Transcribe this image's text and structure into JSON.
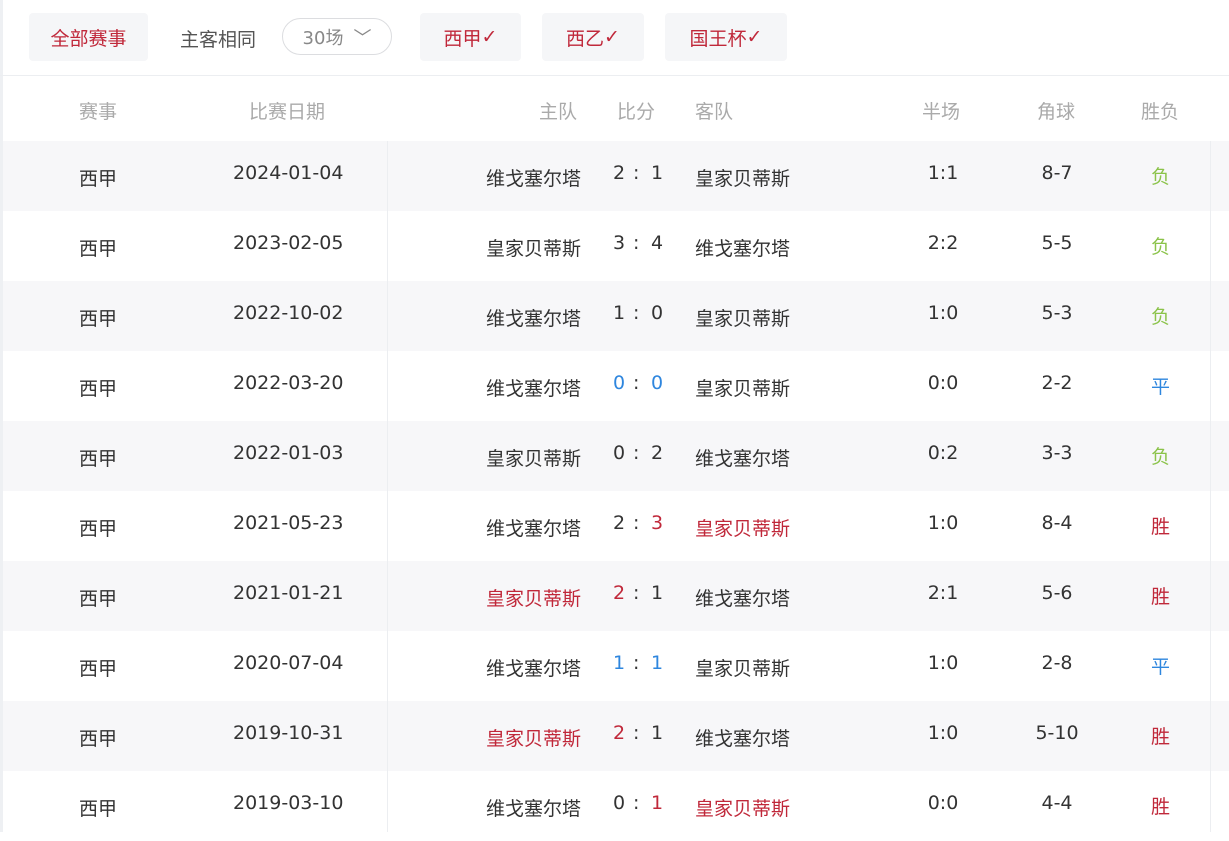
{
  "filters": {
    "all": "全部赛事",
    "same_label": "主客相同",
    "count": "30场",
    "leagues": [
      "西甲",
      "西乙",
      "国王杯"
    ],
    "check": "✓"
  },
  "headers": {
    "league": "赛事",
    "date": "比赛日期",
    "home": "主队",
    "score": "比分",
    "away": "客队",
    "half": "半场",
    "corner": "角球",
    "result": "胜负"
  },
  "colors": {
    "win": "#c0283a",
    "draw": "#2e86de",
    "loss": "#8bc34a"
  },
  "rows": [
    {
      "league": "西甲",
      "date": "2024-01-04",
      "home": "维戈塞尔塔",
      "hs": "2",
      "as": "1",
      "away": "皇家贝蒂斯",
      "half": "1:1",
      "corner": "8-7",
      "result": "负",
      "winner": "none"
    },
    {
      "league": "西甲",
      "date": "2023-02-05",
      "home": "皇家贝蒂斯",
      "hs": "3",
      "as": "4",
      "away": "维戈塞尔塔",
      "half": "2:2",
      "corner": "5-5",
      "result": "负",
      "winner": "none"
    },
    {
      "league": "西甲",
      "date": "2022-10-02",
      "home": "维戈塞尔塔",
      "hs": "1",
      "as": "0",
      "away": "皇家贝蒂斯",
      "half": "1:0",
      "corner": "5-3",
      "result": "负",
      "winner": "none"
    },
    {
      "league": "西甲",
      "date": "2022-03-20",
      "home": "维戈塞尔塔",
      "hs": "0",
      "as": "0",
      "away": "皇家贝蒂斯",
      "half": "0:0",
      "corner": "2-2",
      "result": "平",
      "winner": "draw"
    },
    {
      "league": "西甲",
      "date": "2022-01-03",
      "home": "皇家贝蒂斯",
      "hs": "0",
      "as": "2",
      "away": "维戈塞尔塔",
      "half": "0:2",
      "corner": "3-3",
      "result": "负",
      "winner": "none"
    },
    {
      "league": "西甲",
      "date": "2021-05-23",
      "home": "维戈塞尔塔",
      "hs": "2",
      "as": "3",
      "away": "皇家贝蒂斯",
      "half": "1:0",
      "corner": "8-4",
      "result": "胜",
      "winner": "away"
    },
    {
      "league": "西甲",
      "date": "2021-01-21",
      "home": "皇家贝蒂斯",
      "hs": "2",
      "as": "1",
      "away": "维戈塞尔塔",
      "half": "2:1",
      "corner": "5-6",
      "result": "胜",
      "winner": "home"
    },
    {
      "league": "西甲",
      "date": "2020-07-04",
      "home": "维戈塞尔塔",
      "hs": "1",
      "as": "1",
      "away": "皇家贝蒂斯",
      "half": "1:0",
      "corner": "2-8",
      "result": "平",
      "winner": "draw"
    },
    {
      "league": "西甲",
      "date": "2019-10-31",
      "home": "皇家贝蒂斯",
      "hs": "2",
      "as": "1",
      "away": "维戈塞尔塔",
      "half": "1:0",
      "corner": "5-10",
      "result": "胜",
      "winner": "home"
    },
    {
      "league": "西甲",
      "date": "2019-03-10",
      "home": "维戈塞尔塔",
      "hs": "0",
      "as": "1",
      "away": "皇家贝蒂斯",
      "half": "0:0",
      "corner": "4-4",
      "result": "胜",
      "winner": "away"
    }
  ]
}
